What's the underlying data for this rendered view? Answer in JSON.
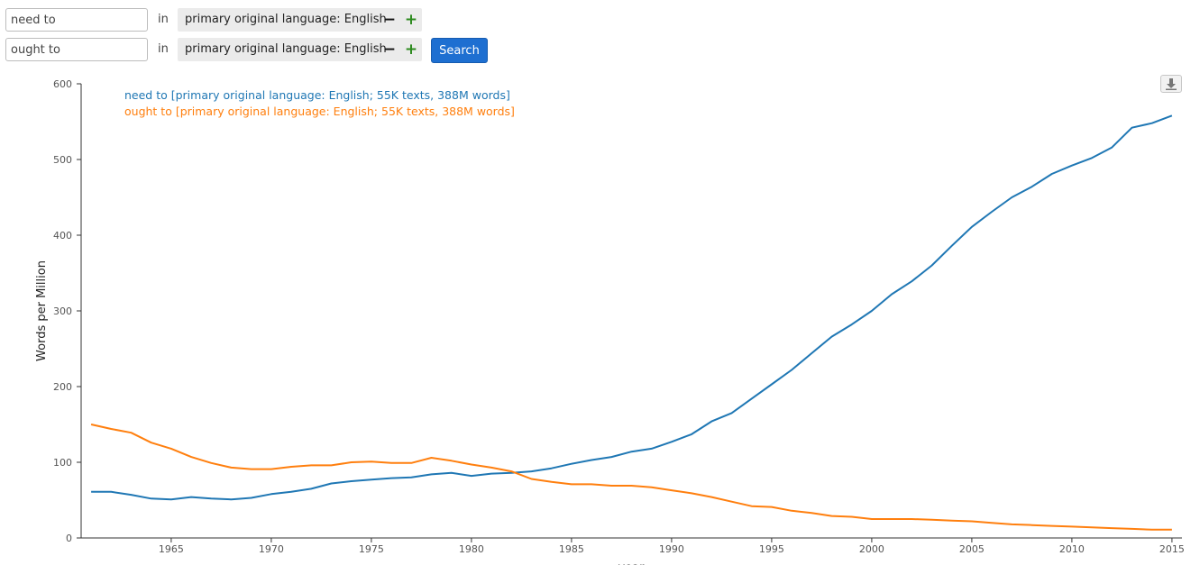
{
  "queries": [
    {
      "term": "need to",
      "in_label": "in",
      "language": "primary original language: English",
      "minus": "−",
      "plus": "+"
    },
    {
      "term": "ought to",
      "in_label": "in",
      "language": "primary original language: English",
      "minus": "−",
      "plus": "+"
    }
  ],
  "search_label": "Search",
  "download_icon": "download-icon",
  "chart_data": {
    "type": "line",
    "title": "",
    "xlabel": "year",
    "ylabel": "Words per Million",
    "xlim": [
      1960.5,
      2015.5
    ],
    "ylim": [
      0,
      600
    ],
    "yticks": [
      0,
      100,
      200,
      300,
      400,
      500,
      600
    ],
    "xticks": [
      1965,
      1970,
      1975,
      1980,
      1985,
      1990,
      1995,
      2000,
      2005,
      2010,
      2015
    ],
    "grid": false,
    "legend_position": "top-left",
    "x": [
      1961,
      1962,
      1963,
      1964,
      1965,
      1966,
      1967,
      1968,
      1969,
      1970,
      1971,
      1972,
      1973,
      1974,
      1975,
      1976,
      1977,
      1978,
      1979,
      1980,
      1981,
      1982,
      1983,
      1984,
      1985,
      1986,
      1987,
      1988,
      1989,
      1990,
      1991,
      1992,
      1993,
      1994,
      1995,
      1996,
      1997,
      1998,
      1999,
      2000,
      2001,
      2002,
      2003,
      2004,
      2005,
      2006,
      2007,
      2008,
      2009,
      2010,
      2011,
      2012,
      2013,
      2014,
      2015
    ],
    "series": [
      {
        "name": "need to [primary original language: English; 55K texts, 388M words]",
        "color": "#1f77b4",
        "values": [
          61,
          61,
          57,
          52,
          51,
          54,
          52,
          51,
          53,
          58,
          61,
          65,
          72,
          75,
          77,
          79,
          80,
          84,
          86,
          82,
          85,
          86,
          88,
          92,
          98,
          103,
          107,
          114,
          118,
          127,
          137,
          154,
          165,
          184,
          203,
          222,
          244,
          266,
          282,
          300,
          322,
          339,
          360,
          386,
          411,
          431,
          450,
          464,
          481,
          492,
          502,
          516,
          542,
          548,
          558
        ]
      },
      {
        "name": "ought to [primary original language: English; 55K texts, 388M words]",
        "color": "#ff7f0e",
        "values": [
          150,
          144,
          139,
          126,
          118,
          107,
          99,
          93,
          91,
          91,
          94,
          96,
          96,
          100,
          101,
          99,
          99,
          106,
          102,
          97,
          93,
          88,
          78,
          74,
          71,
          71,
          69,
          69,
          67,
          63,
          59,
          54,
          48,
          42,
          41,
          36,
          33,
          29,
          28,
          25,
          25,
          25,
          24,
          23,
          22,
          20,
          18,
          17,
          16,
          15,
          14,
          13,
          12,
          11,
          11
        ]
      }
    ]
  }
}
